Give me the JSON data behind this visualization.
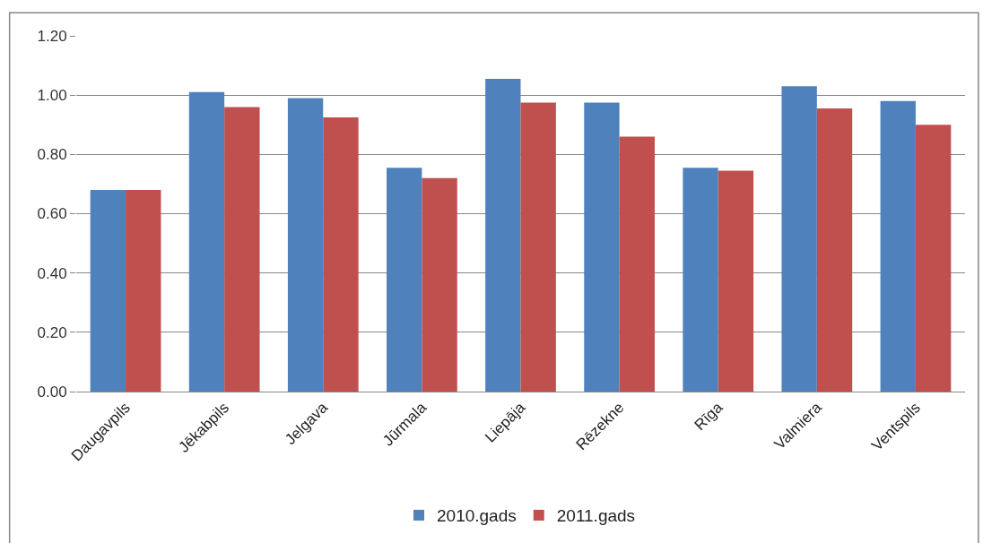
{
  "chart_data": {
    "type": "bar",
    "categories": [
      "Daugavpils",
      "Jēkabpils",
      "Jelgava",
      "Jūrmala",
      "Liepāja",
      "Rēzekne",
      "Rīga",
      "Valmiera",
      "Ventspils"
    ],
    "series": [
      {
        "name": "2010.gads",
        "color": "#4f81bd",
        "values": [
          0.68,
          1.01,
          0.99,
          0.755,
          1.055,
          0.975,
          0.755,
          1.03,
          0.98
        ]
      },
      {
        "name": "2011.gads",
        "color": "#c0504d",
        "values": [
          0.68,
          0.96,
          0.925,
          0.72,
          0.975,
          0.86,
          0.745,
          0.955,
          0.9
        ]
      }
    ],
    "ylim": [
      0,
      1.2
    ],
    "yticks": [
      {
        "value": 0,
        "label": "0.00"
      },
      {
        "value": 0.2,
        "label": "0.20"
      },
      {
        "value": 0.4,
        "label": "0.40"
      },
      {
        "value": 0.6,
        "label": "0.60"
      },
      {
        "value": 0.8,
        "label": "0.80"
      },
      {
        "value": 1.0,
        "label": "1.00"
      },
      {
        "value": 1.2,
        "label": "1.20"
      }
    ],
    "grid": "y",
    "legend": "bottom"
  }
}
